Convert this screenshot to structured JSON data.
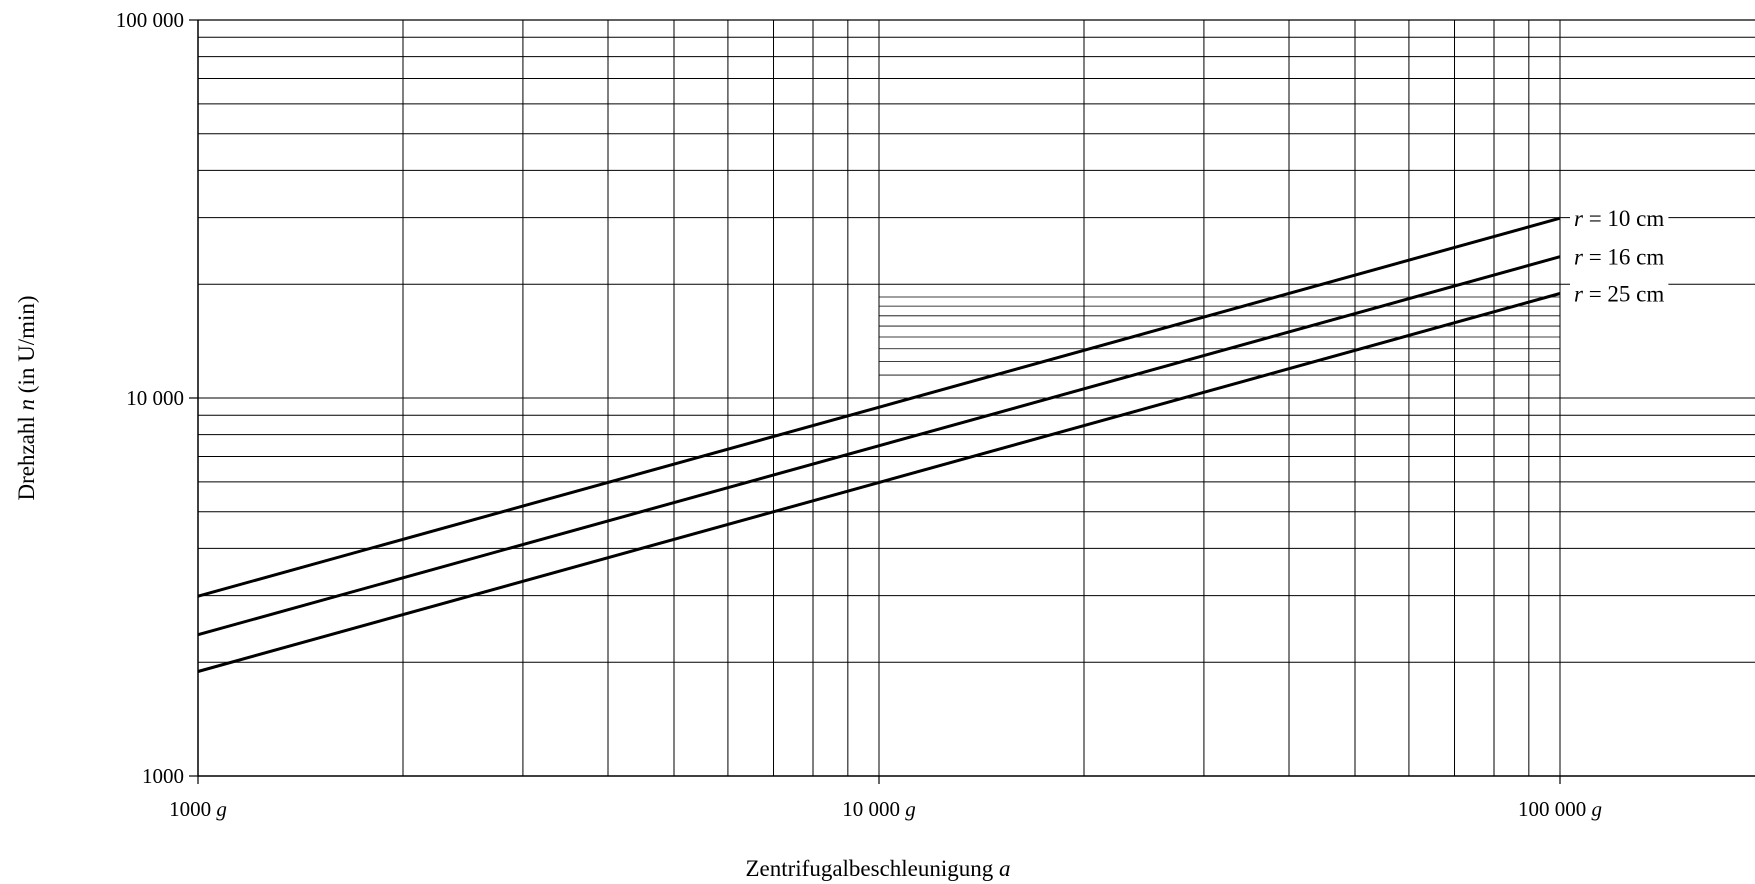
{
  "chart_data": {
    "type": "line",
    "x_scale": "log",
    "y_scale": "log",
    "xlim": [
      1000,
      200000
    ],
    "ylim": [
      1000,
      100000
    ],
    "x_ticks": [
      {
        "value": 1000,
        "num": "1000",
        "unit": "g"
      },
      {
        "value": 10000,
        "num": "10 000",
        "unit": "g"
      },
      {
        "value": 100000,
        "num": "100 000",
        "unit": "g"
      }
    ],
    "y_ticks": [
      {
        "value": 1000,
        "label": "1000"
      },
      {
        "value": 10000,
        "label": "10 000"
      },
      {
        "value": 100000,
        "label": "100 000"
      }
    ],
    "xlabel": {
      "text": "Zentrifugalbeschleunigung ",
      "var": "a"
    },
    "ylabel": {
      "pre": "Drehzahl ",
      "var": "n",
      "post": " (in U/min)"
    },
    "series": [
      {
        "name": "r = 10 cm",
        "var": "r",
        "value": "10 cm",
        "x": [
          1000,
          100000
        ],
        "y": [
          2990,
          29900
        ]
      },
      {
        "name": "r = 16 cm",
        "var": "r",
        "value": "16 cm",
        "x": [
          1000,
          100000
        ],
        "y": [
          2365,
          23650
        ]
      },
      {
        "name": "r = 25 cm",
        "var": "r",
        "value": "25 cm",
        "x": [
          1000,
          100000
        ],
        "y": [
          1890,
          18900
        ]
      }
    ],
    "grid": true,
    "fine_grid": {
      "x": [
        10000,
        100000
      ],
      "y": [
        11000,
        19000
      ],
      "step": 500
    }
  }
}
